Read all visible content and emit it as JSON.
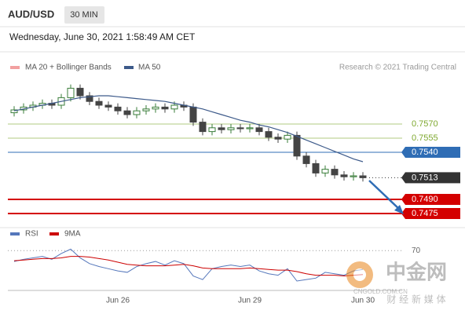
{
  "header": {
    "symbol": "AUD/USD",
    "interval": "30 MIN",
    "timestamp": "Wednesday, June 30, 2021 1:58:49 AM CET"
  },
  "chart_data": {
    "type": "candlestick",
    "band_legend": {
      "name": "MA 20 + Bollinger Bands",
      "color": "#f2a0a0"
    },
    "source": "Research © 2021 Trading Central",
    "categories": [
      null,
      null,
      null,
      null,
      null,
      null,
      null,
      null,
      null,
      null,
      null,
      "Jun 26",
      null,
      null,
      null,
      null,
      null,
      null,
      null,
      null,
      null,
      null,
      null,
      null,
      null,
      "Jun 29",
      null,
      null,
      null,
      null,
      null,
      null,
      null,
      null,
      null,
      null,
      null,
      "Jun 30"
    ],
    "open": [
      0.7582,
      0.7585,
      0.7588,
      0.759,
      0.7592,
      0.759,
      0.7598,
      0.7608,
      0.76,
      0.7594,
      0.759,
      0.7588,
      0.7584,
      0.758,
      0.7584,
      0.7586,
      0.7588,
      0.7586,
      0.759,
      0.7588,
      0.7572,
      0.7562,
      0.7566,
      0.7564,
      0.7566,
      0.7565,
      0.7566,
      0.7562,
      0.7556,
      0.7554,
      0.7558,
      0.7536,
      0.7528,
      0.7518,
      0.7522,
      0.7516,
      0.7514,
      0.7515
    ],
    "high": [
      0.7589,
      0.7592,
      0.7594,
      0.7596,
      0.7596,
      0.7602,
      0.7612,
      0.7612,
      0.7604,
      0.7598,
      0.7594,
      0.7592,
      0.7588,
      0.7588,
      0.759,
      0.7592,
      0.7592,
      0.7594,
      0.7594,
      0.7592,
      0.7576,
      0.757,
      0.757,
      0.757,
      0.757,
      0.757,
      0.757,
      0.7566,
      0.756,
      0.7562,
      0.7562,
      0.754,
      0.7532,
      0.7526,
      0.7526,
      0.752,
      0.7519,
      0.7519
    ],
    "low": [
      0.7578,
      0.7581,
      0.7584,
      0.7586,
      0.7586,
      0.7586,
      0.7594,
      0.7596,
      0.759,
      0.7586,
      0.7584,
      0.758,
      0.7576,
      0.7576,
      0.758,
      0.7582,
      0.7582,
      0.7582,
      0.7584,
      0.7568,
      0.7558,
      0.7558,
      0.756,
      0.756,
      0.7561,
      0.7561,
      0.7558,
      0.7552,
      0.755,
      0.755,
      0.7532,
      0.7524,
      0.7514,
      0.7514,
      0.7512,
      0.751,
      0.751,
      0.7509
    ],
    "close": [
      0.7585,
      0.7588,
      0.759,
      0.7592,
      0.759,
      0.7598,
      0.7608,
      0.76,
      0.7594,
      0.759,
      0.7588,
      0.7584,
      0.758,
      0.7584,
      0.7586,
      0.7588,
      0.7586,
      0.759,
      0.7588,
      0.7572,
      0.7562,
      0.7566,
      0.7564,
      0.7566,
      0.7565,
      0.7566,
      0.7562,
      0.7556,
      0.7554,
      0.7558,
      0.7536,
      0.7528,
      0.7518,
      0.7522,
      0.7516,
      0.7514,
      0.7515,
      0.7513
    ],
    "up_color": "#3a7d3a",
    "down_color": "#444444",
    "ma50": {
      "name": "MA 50",
      "color": "#3d5a8a",
      "values": [
        0.7584,
        0.7586,
        0.7588,
        0.759,
        0.7592,
        0.7594,
        0.7596,
        0.7598,
        0.7599,
        0.76,
        0.76,
        0.7599,
        0.7598,
        0.7597,
        0.7596,
        0.7595,
        0.7594,
        0.7592,
        0.759,
        0.7588,
        0.7586,
        0.7583,
        0.758,
        0.7577,
        0.7574,
        0.7572,
        0.7569,
        0.7567,
        0.7564,
        0.7561,
        0.7557,
        0.7553,
        0.7549,
        0.7545,
        0.7541,
        0.7537,
        0.7533,
        0.753
      ]
    },
    "ylim": [
      0.746,
      0.7625
    ],
    "levels": [
      {
        "value": 0.757,
        "label": "0.7570",
        "color": "#7ea82e",
        "box": false,
        "line": "thin"
      },
      {
        "value": 0.7555,
        "label": "0.7555",
        "color": "#7ea82e",
        "box": false,
        "line": "thin"
      },
      {
        "value": 0.754,
        "label": "0.7540",
        "color": "#2f6db5",
        "box": true,
        "line": "thin"
      },
      {
        "value": 0.7513,
        "label": "0.7513",
        "color": "#333333",
        "box": true,
        "line": "dotted"
      },
      {
        "value": 0.749,
        "label": "0.7490",
        "color": "#d40000",
        "box": true,
        "line": "thick"
      },
      {
        "value": 0.7475,
        "label": "0.7475",
        "color": "#d40000",
        "box": true,
        "line": "thick"
      }
    ],
    "rsi": {
      "ylim": [
        15,
        80
      ],
      "yticks": [
        70
      ],
      "series": [
        {
          "name": "RSI",
          "color": "#5577bb",
          "values": [
            55,
            58,
            60,
            62,
            58,
            66,
            72,
            60,
            52,
            48,
            45,
            42,
            40,
            48,
            52,
            55,
            50,
            56,
            52,
            35,
            30,
            45,
            48,
            50,
            48,
            50,
            42,
            38,
            36,
            45,
            28,
            30,
            32,
            40,
            38,
            36,
            42,
            44
          ]
        },
        {
          "name": "9MA",
          "color": "#cc0000",
          "values": [
            56,
            57,
            58,
            59,
            59,
            60,
            62,
            62,
            61,
            59,
            57,
            54,
            51,
            50,
            49,
            49,
            49,
            50,
            51,
            49,
            46,
            45,
            45,
            45,
            45,
            46,
            45,
            44,
            43,
            43,
            41,
            38,
            36,
            36,
            36,
            35,
            36,
            37
          ]
        }
      ]
    }
  },
  "watermark": {
    "name": "中金网",
    "domain": "CNGOLD.COM.CN",
    "tagline": "财 经 新 媒 体"
  }
}
